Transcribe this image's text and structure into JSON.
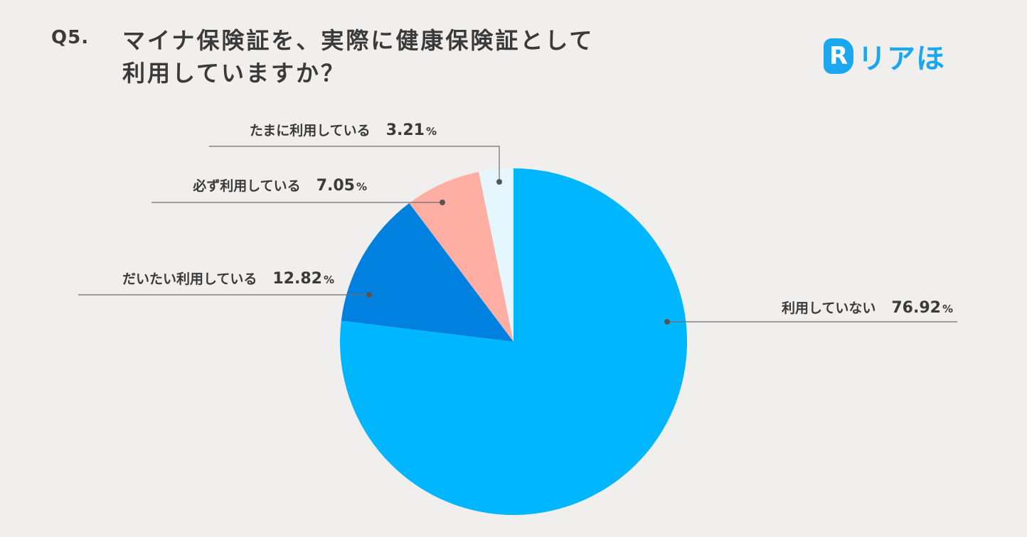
{
  "header": {
    "question_number": "Q5.",
    "question_line1": "マイナ保険証を、実際に健康保険証として",
    "question_line2": "利用していますか？"
  },
  "brand": {
    "mark": "R",
    "name": "リアほ",
    "color": "#1aa7ef"
  },
  "chart_data": {
    "type": "pie",
    "title": "マイナ保険証を、実際に健康保険証として利用していますか？",
    "start": "12 o'clock, clockwise",
    "slices": [
      {
        "label": "利用していない",
        "value": 76.92,
        "display": "76.92",
        "unit": "%",
        "color": "#00b7ff"
      },
      {
        "label": "だいたい利用している",
        "value": 12.82,
        "display": "12.82",
        "unit": "%",
        "color": "#0181df"
      },
      {
        "label": "必ず利用している",
        "value": 7.05,
        "display": "7.05",
        "unit": "%",
        "color": "#ffaea3"
      },
      {
        "label": "たまに利用している",
        "value": 3.21,
        "display": "3.21",
        "unit": "%",
        "color": "#e6f6ff"
      }
    ]
  }
}
